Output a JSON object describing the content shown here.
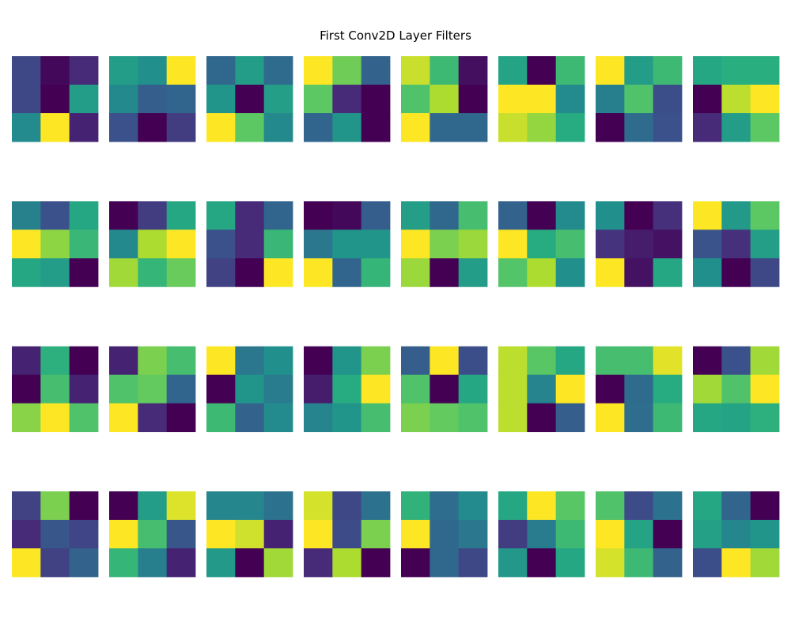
{
  "chart_data": {
    "type": "heatmap",
    "title": "First Conv2D Layer Filters",
    "colormap": "viridis",
    "grid_rows": 4,
    "grid_cols": 8,
    "filter_size": [
      3,
      3
    ],
    "filters": [
      [
        [
          0.22,
          0.02,
          0.12
        ],
        [
          0.22,
          0.0,
          0.55
        ],
        [
          0.48,
          1.0,
          0.1
        ]
      ],
      [
        [
          0.55,
          0.5,
          1.0
        ],
        [
          0.47,
          0.3,
          0.33
        ],
        [
          0.25,
          0.0,
          0.18
        ]
      ],
      [
        [
          0.34,
          0.55,
          0.35
        ],
        [
          0.52,
          0.0,
          0.56
        ],
        [
          1.0,
          0.75,
          0.47
        ]
      ],
      [
        [
          1.0,
          0.78,
          0.32
        ],
        [
          0.75,
          0.12,
          0.0
        ],
        [
          0.33,
          0.52,
          0.0
        ]
      ],
      [
        [
          0.92,
          0.68,
          0.04
        ],
        [
          0.72,
          0.88,
          0.0
        ],
        [
          1.0,
          0.34,
          0.34
        ]
      ],
      [
        [
          0.58,
          0.0,
          0.68
        ],
        [
          1.0,
          1.0,
          0.48
        ],
        [
          0.92,
          0.84,
          0.62
        ]
      ],
      [
        [
          1.0,
          0.55,
          0.68
        ],
        [
          0.43,
          0.72,
          0.24
        ],
        [
          0.0,
          0.35,
          0.25
        ]
      ],
      [
        [
          0.6,
          0.63,
          0.63
        ],
        [
          0.0,
          0.9,
          1.0
        ],
        [
          0.12,
          0.55,
          0.75
        ]
      ],
      [
        [
          0.44,
          0.25,
          0.6
        ],
        [
          1.0,
          0.83,
          0.67
        ],
        [
          0.6,
          0.55,
          0.0
        ]
      ],
      [
        [
          0.0,
          0.18,
          0.6
        ],
        [
          0.47,
          0.88,
          1.0
        ],
        [
          0.86,
          0.66,
          0.77
        ]
      ],
      [
        [
          0.6,
          0.12,
          0.33
        ],
        [
          0.25,
          0.12,
          0.67
        ],
        [
          0.2,
          0.0,
          1.0
        ]
      ],
      [
        [
          0.0,
          0.02,
          0.3
        ],
        [
          0.4,
          0.52,
          0.52
        ],
        [
          1.0,
          0.33,
          0.66
        ]
      ],
      [
        [
          0.56,
          0.34,
          0.7
        ],
        [
          1.0,
          0.8,
          0.85
        ],
        [
          0.85,
          0.0,
          0.55
        ]
      ],
      [
        [
          0.32,
          0.0,
          0.48
        ],
        [
          1.0,
          0.62,
          0.7
        ],
        [
          0.73,
          0.88,
          0.5
        ]
      ],
      [
        [
          0.5,
          0.0,
          0.14
        ],
        [
          0.15,
          0.08,
          0.05
        ],
        [
          1.0,
          0.05,
          0.6
        ]
      ],
      [
        [
          1.0,
          0.54,
          0.75
        ],
        [
          0.26,
          0.14,
          0.56
        ],
        [
          0.5,
          0.0,
          0.22
        ]
      ],
      [
        [
          0.1,
          0.64,
          0.0
        ],
        [
          0.0,
          0.7,
          0.1
        ],
        [
          0.82,
          1.0,
          0.72
        ]
      ],
      [
        [
          0.1,
          0.8,
          0.7
        ],
        [
          0.72,
          0.76,
          0.33
        ],
        [
          1.0,
          0.12,
          0.0
        ]
      ],
      [
        [
          1.0,
          0.4,
          0.5
        ],
        [
          0.0,
          0.52,
          0.42
        ],
        [
          0.68,
          0.32,
          0.48
        ]
      ],
      [
        [
          0.0,
          0.52,
          0.8
        ],
        [
          0.08,
          0.62,
          1.0
        ],
        [
          0.45,
          0.52,
          0.7
        ]
      ],
      [
        [
          0.3,
          1.0,
          0.24
        ],
        [
          0.72,
          0.0,
          0.6
        ],
        [
          0.8,
          0.76,
          0.72
        ]
      ],
      [
        [
          0.9,
          0.74,
          0.6
        ],
        [
          0.9,
          0.45,
          1.0
        ],
        [
          0.9,
          0.0,
          0.3
        ]
      ],
      [
        [
          0.7,
          0.7,
          0.96
        ],
        [
          0.0,
          0.35,
          0.62
        ],
        [
          1.0,
          0.36,
          0.68
        ]
      ],
      [
        [
          0.0,
          0.25,
          0.86
        ],
        [
          0.86,
          0.72,
          1.0
        ],
        [
          0.6,
          0.58,
          0.64
        ]
      ],
      [
        [
          0.2,
          0.8,
          0.0
        ],
        [
          0.12,
          0.27,
          0.21
        ],
        [
          1.0,
          0.2,
          0.32
        ]
      ],
      [
        [
          0.0,
          0.55,
          0.95
        ],
        [
          1.0,
          0.7,
          0.27
        ],
        [
          0.66,
          0.43,
          0.1
        ]
      ],
      [
        [
          0.46,
          0.46,
          0.38
        ],
        [
          1.0,
          0.93,
          0.1
        ],
        [
          0.54,
          0.0,
          0.86
        ]
      ],
      [
        [
          0.94,
          0.22,
          0.38
        ],
        [
          1.0,
          0.23,
          0.8
        ],
        [
          0.12,
          0.88,
          0.0
        ]
      ],
      [
        [
          0.65,
          0.36,
          0.48
        ],
        [
          1.0,
          0.34,
          0.4
        ],
        [
          0.0,
          0.34,
          0.22
        ]
      ],
      [
        [
          0.6,
          1.0,
          0.74
        ],
        [
          0.18,
          0.42,
          0.68
        ],
        [
          0.53,
          0.0,
          0.6
        ]
      ],
      [
        [
          0.72,
          0.23,
          0.38
        ],
        [
          1.0,
          0.58,
          0.0
        ],
        [
          0.94,
          0.68,
          0.32
        ]
      ],
      [
        [
          0.6,
          0.33,
          0.0
        ],
        [
          0.57,
          0.46,
          0.52
        ],
        [
          0.24,
          1.0,
          0.86
        ]
      ]
    ]
  }
}
